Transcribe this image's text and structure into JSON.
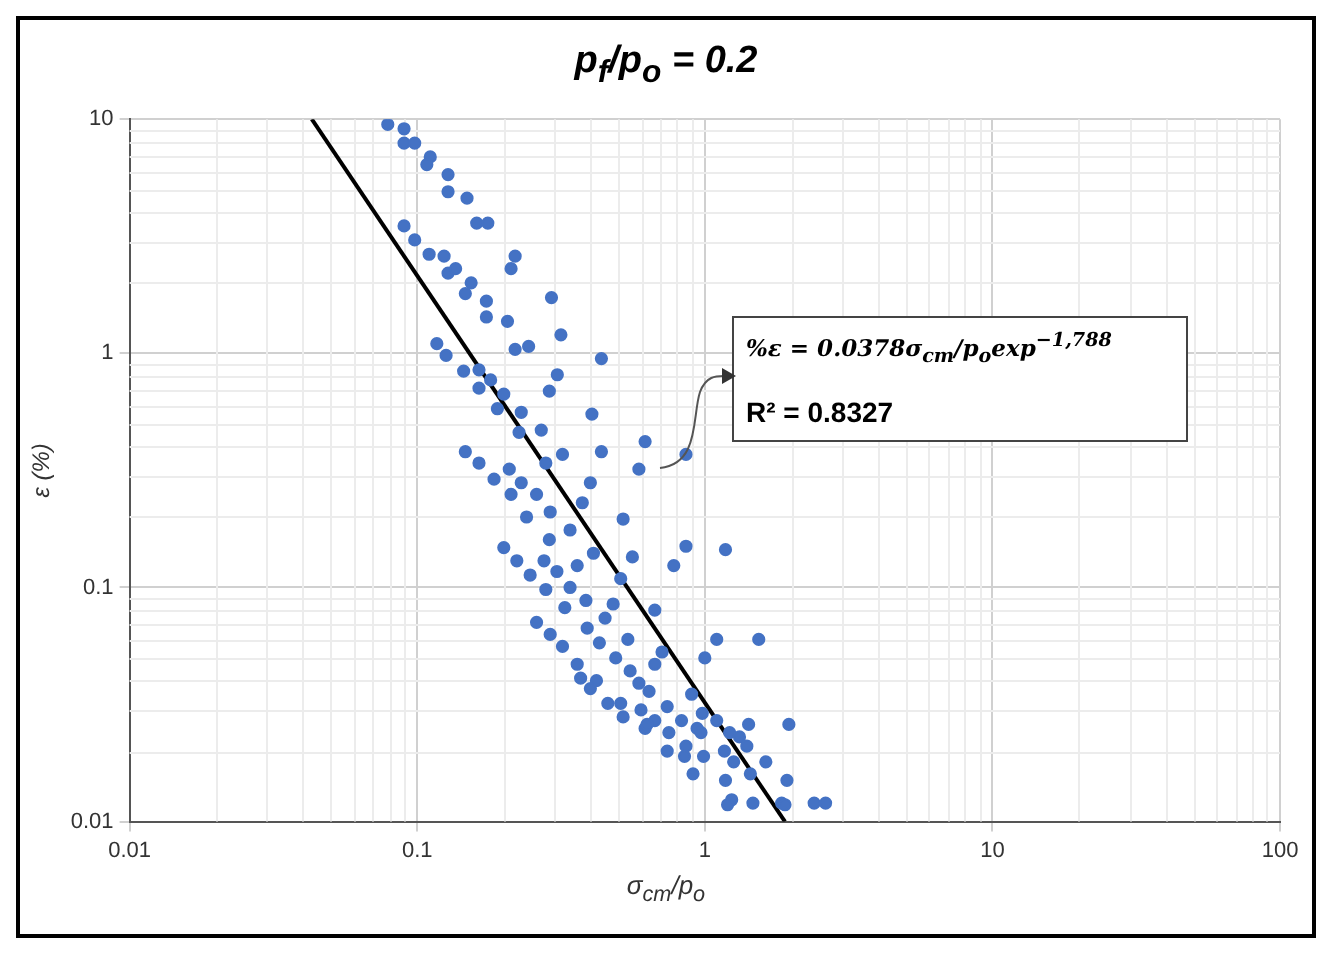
{
  "chart_data": {
    "type": "scatter",
    "title": "p$_{f}$/p$_{o}$ = 0.2",
    "xlabel": "σ$_{cm}$/p$_{o}$",
    "ylabel": "ε (%)",
    "log": "xy",
    "grid": true,
    "legend": false,
    "marker": "circle",
    "xlim": [
      0.01,
      100
    ],
    "xticks": [
      0.01,
      0.1,
      1,
      10,
      100
    ],
    "ylim": [
      0.01,
      10
    ],
    "yticks": [
      0.01,
      0.1,
      1,
      10
    ],
    "annotations": [
      "%ε = 0.0378σ$_{cm}$/p$_{o}$exp$^{−1,788}$",
      "R² = 0.8327"
    ],
    "series": [
      {
        "color": "#4472c4",
        "x": [
          0.079,
          0.09,
          0.09,
          0.098,
          0.111,
          0.108,
          0.128,
          0.128,
          0.149,
          0.09,
          0.161,
          0.176,
          0.098,
          0.11,
          0.124,
          0.128,
          0.136,
          0.219,
          0.212,
          0.154,
          0.147,
          0.174,
          0.293,
          0.174,
          0.206,
          0.316,
          0.117,
          0.126,
          0.219,
          0.244,
          0.437,
          0.145,
          0.164,
          0.307,
          0.164,
          0.18,
          0.2,
          0.288,
          0.19,
          0.23,
          0.226,
          0.27,
          0.405,
          0.147,
          0.164,
          0.185,
          0.209,
          0.23,
          0.212,
          0.26,
          0.28,
          0.32,
          0.437,
          0.4,
          0.375,
          0.24,
          0.29,
          0.34,
          0.52,
          0.62,
          0.86,
          0.59,
          0.2,
          0.288,
          0.222,
          0.276,
          0.36,
          0.41,
          0.56,
          0.86,
          1.18,
          0.78,
          0.247,
          0.306,
          0.28,
          0.34,
          0.51,
          0.326,
          0.386,
          0.48,
          0.67,
          0.26,
          0.39,
          0.45,
          0.29,
          0.32,
          0.43,
          0.54,
          0.71,
          1.1,
          1.54,
          1.0,
          0.49,
          0.36,
          0.67,
          0.55,
          0.37,
          0.42,
          0.59,
          0.4,
          0.64,
          0.9,
          0.46,
          0.51,
          0.6,
          0.74,
          0.52,
          0.67,
          0.83,
          0.98,
          1.1,
          1.42,
          1.96,
          0.62,
          0.94,
          0.97,
          1.22,
          1.32,
          0.75,
          0.63,
          0.86,
          0.74,
          0.85,
          0.99,
          1.17,
          1.26,
          1.4,
          1.63,
          0.91,
          1.18,
          1.44,
          1.93,
          1.24,
          1.2,
          1.47,
          1.85,
          1.9,
          2.4,
          2.63
        ],
        "values": [
          9.5,
          9.1,
          7.9,
          7.9,
          6.9,
          6.4,
          5.8,
          4.9,
          4.6,
          3.5,
          3.6,
          3.6,
          3.05,
          2.65,
          2.6,
          2.2,
          2.3,
          2.6,
          2.3,
          2.0,
          1.8,
          1.67,
          1.73,
          1.43,
          1.37,
          1.2,
          1.1,
          0.98,
          1.04,
          1.07,
          0.95,
          0.84,
          0.85,
          0.81,
          0.71,
          0.77,
          0.67,
          0.69,
          0.58,
          0.56,
          0.46,
          0.47,
          0.55,
          0.38,
          0.34,
          0.29,
          0.32,
          0.28,
          0.25,
          0.25,
          0.34,
          0.37,
          0.38,
          0.28,
          0.23,
          0.2,
          0.21,
          0.176,
          0.196,
          0.42,
          0.37,
          0.32,
          0.148,
          0.16,
          0.13,
          0.13,
          0.124,
          0.14,
          0.135,
          0.15,
          0.145,
          0.124,
          0.113,
          0.117,
          0.098,
          0.1,
          0.109,
          0.082,
          0.088,
          0.085,
          0.08,
          0.071,
          0.067,
          0.074,
          0.063,
          0.056,
          0.058,
          0.06,
          0.053,
          0.06,
          0.06,
          0.05,
          0.05,
          0.047,
          0.047,
          0.044,
          0.041,
          0.04,
          0.039,
          0.037,
          0.036,
          0.035,
          0.032,
          0.032,
          0.03,
          0.031,
          0.028,
          0.027,
          0.027,
          0.029,
          0.027,
          0.026,
          0.026,
          0.025,
          0.025,
          0.024,
          0.024,
          0.023,
          0.024,
          0.026,
          0.021,
          0.02,
          0.019,
          0.019,
          0.02,
          0.018,
          0.021,
          0.018,
          0.016,
          0.015,
          0.016,
          0.015,
          0.0124,
          0.0118,
          0.012,
          0.012,
          0.0118,
          0.012,
          0.012
        ]
      },
      {
        "type": "line",
        "color": "#000000",
        "line_style": "solid",
        "marker": "none",
        "x": [
          0.043,
          1.9
        ],
        "values": [
          10,
          0.01
        ]
      }
    ]
  }
}
